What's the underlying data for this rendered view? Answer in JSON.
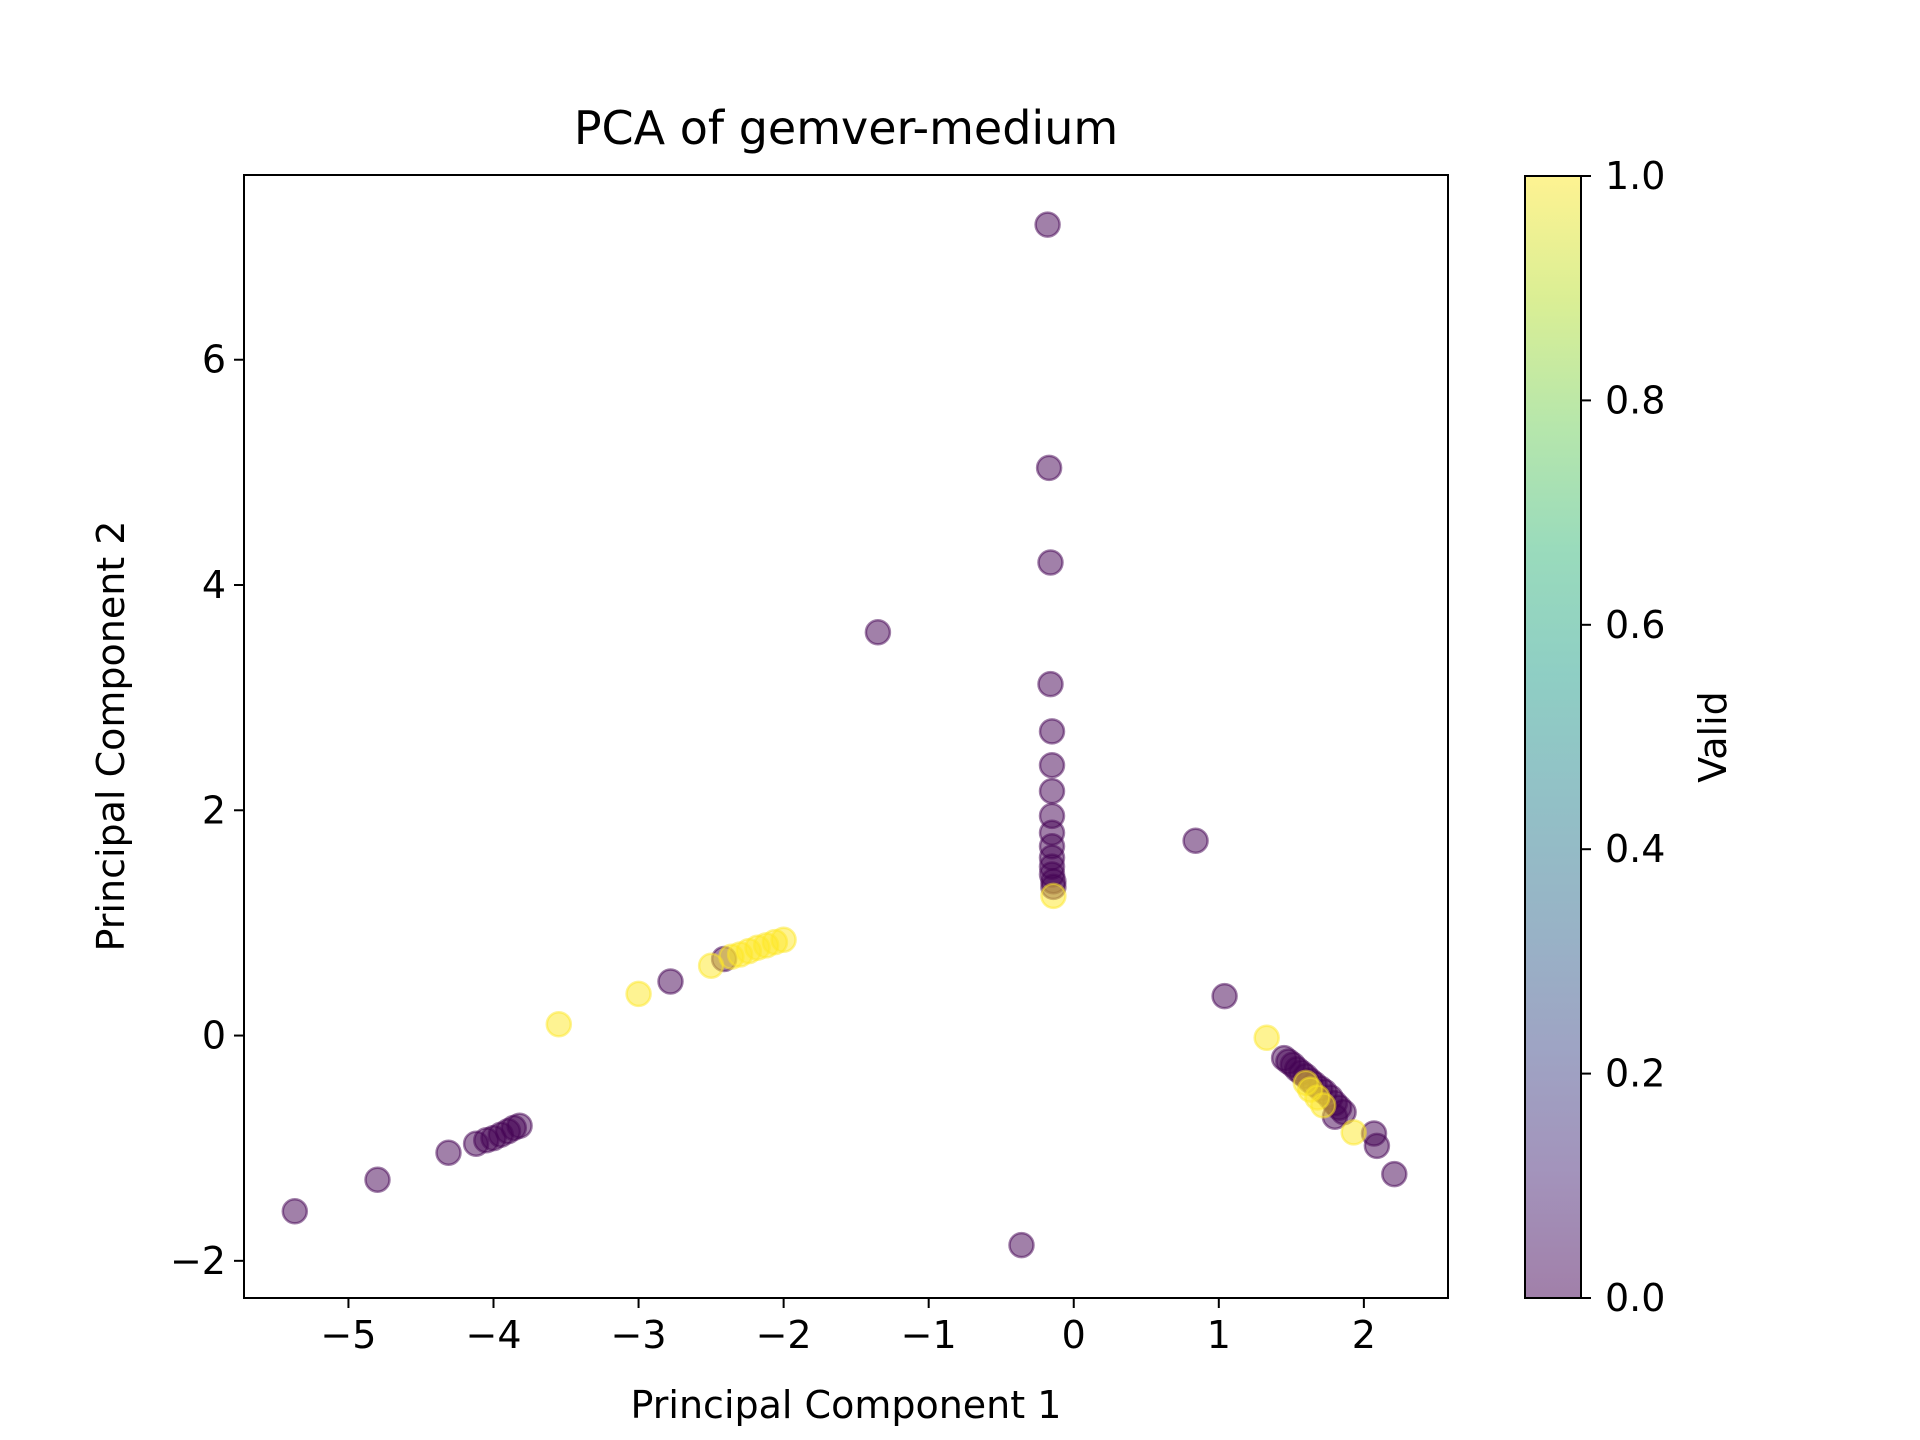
{
  "chart_data": {
    "type": "scatter",
    "title": "PCA of gemver-medium",
    "xlabel": "Principal Component 1",
    "ylabel": "Principal Component 2",
    "xlim": [
      -5.72,
      2.58
    ],
    "ylim": [
      -2.33,
      7.64
    ],
    "xticks": [
      -5,
      -4,
      -3,
      -2,
      -1,
      0,
      1,
      2
    ],
    "yticks": [
      -2,
      0,
      2,
      4,
      6
    ],
    "grid": false,
    "marker_alpha": 0.5,
    "colorbar": {
      "label": "Valid",
      "colormap": "viridis",
      "range": [
        0.0,
        1.0
      ],
      "ticks": [
        "0.0",
        "0.2",
        "0.4",
        "0.6",
        "0.8",
        "1.0"
      ],
      "low_color": "#440154",
      "high_color": "#fde725"
    },
    "series": [
      {
        "valid": 0,
        "color": "#440154",
        "points": [
          [
            -0.18,
            7.2
          ],
          [
            -0.17,
            5.04
          ],
          [
            -0.16,
            4.2
          ],
          [
            -1.35,
            3.58
          ],
          [
            -0.16,
            3.12
          ],
          [
            -0.15,
            2.7
          ],
          [
            -0.15,
            2.4
          ],
          [
            -0.15,
            2.17
          ],
          [
            -0.15,
            1.95
          ],
          [
            -0.15,
            1.8
          ],
          [
            -0.15,
            1.68
          ],
          [
            -0.15,
            1.58
          ],
          [
            -0.15,
            1.5
          ],
          [
            -0.15,
            1.43
          ],
          [
            -0.14,
            1.37
          ],
          [
            -0.14,
            1.32
          ],
          [
            0.84,
            1.73
          ],
          [
            1.04,
            0.35
          ],
          [
            -2.78,
            0.48
          ],
          [
            -2.41,
            0.68
          ],
          [
            -3.82,
            -0.8
          ],
          [
            -3.86,
            -0.82
          ],
          [
            -3.9,
            -0.85
          ],
          [
            -3.95,
            -0.88
          ],
          [
            -4.0,
            -0.91
          ],
          [
            -4.05,
            -0.93
          ],
          [
            -4.12,
            -0.96
          ],
          [
            -4.31,
            -1.04
          ],
          [
            -4.8,
            -1.28
          ],
          [
            -5.37,
            -1.56
          ],
          [
            -0.36,
            -1.86
          ],
          [
            1.45,
            -0.2
          ],
          [
            1.48,
            -0.23
          ],
          [
            1.51,
            -0.26
          ],
          [
            1.54,
            -0.3
          ],
          [
            1.57,
            -0.33
          ],
          [
            1.6,
            -0.36
          ],
          [
            1.63,
            -0.4
          ],
          [
            1.66,
            -0.43
          ],
          [
            1.7,
            -0.47
          ],
          [
            1.73,
            -0.5
          ],
          [
            1.77,
            -0.55
          ],
          [
            1.8,
            -0.6
          ],
          [
            1.83,
            -0.64
          ],
          [
            1.86,
            -0.68
          ],
          [
            1.8,
            -0.72
          ],
          [
            2.07,
            -0.87
          ],
          [
            2.09,
            -0.98
          ],
          [
            2.21,
            -1.23
          ]
        ]
      },
      {
        "valid": 1,
        "color": "#fde725",
        "points": [
          [
            -0.14,
            1.24
          ],
          [
            -2.0,
            0.85
          ],
          [
            -2.06,
            0.83
          ],
          [
            -2.12,
            0.8
          ],
          [
            -2.18,
            0.78
          ],
          [
            -2.24,
            0.75
          ],
          [
            -2.3,
            0.72
          ],
          [
            -2.36,
            0.7
          ],
          [
            -2.5,
            0.62
          ],
          [
            -3.0,
            0.37
          ],
          [
            -3.55,
            0.1
          ],
          [
            1.33,
            -0.02
          ],
          [
            1.6,
            -0.42
          ],
          [
            1.63,
            -0.48
          ],
          [
            1.68,
            -0.55
          ],
          [
            1.72,
            -0.62
          ],
          [
            1.93,
            -0.86
          ]
        ]
      }
    ]
  }
}
